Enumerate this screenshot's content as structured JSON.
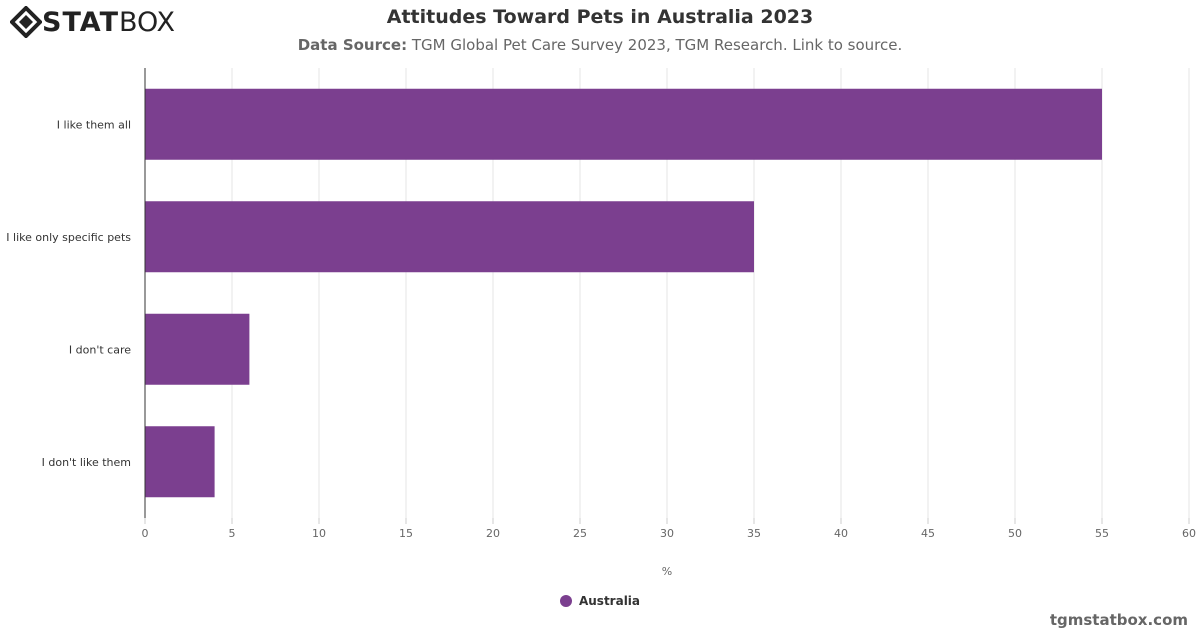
{
  "brand": {
    "logo_bold": "STAT",
    "logo_light": "BOX",
    "credit": "tgmstatbox.com"
  },
  "header": {
    "title": "Attitudes Toward Pets in Australia 2023",
    "source_label": "Data Source:",
    "source_text": "TGM Global Pet Care Survey 2023, TGM Research. Link to source."
  },
  "chart_data": {
    "type": "bar",
    "orientation": "horizontal",
    "categories": [
      "I like them all",
      "I like only specific pets",
      "I don't care",
      "I don't like them"
    ],
    "series": [
      {
        "name": "Australia",
        "values": [
          55,
          35,
          6,
          4
        ],
        "color": "#7b3f8f"
      }
    ],
    "xlabel": "%",
    "xlim": [
      0,
      60
    ],
    "xticks": [
      0,
      5,
      10,
      15,
      20,
      25,
      30,
      35,
      40,
      45,
      50,
      55,
      60
    ],
    "grid": true,
    "legend": "bottom-center"
  }
}
